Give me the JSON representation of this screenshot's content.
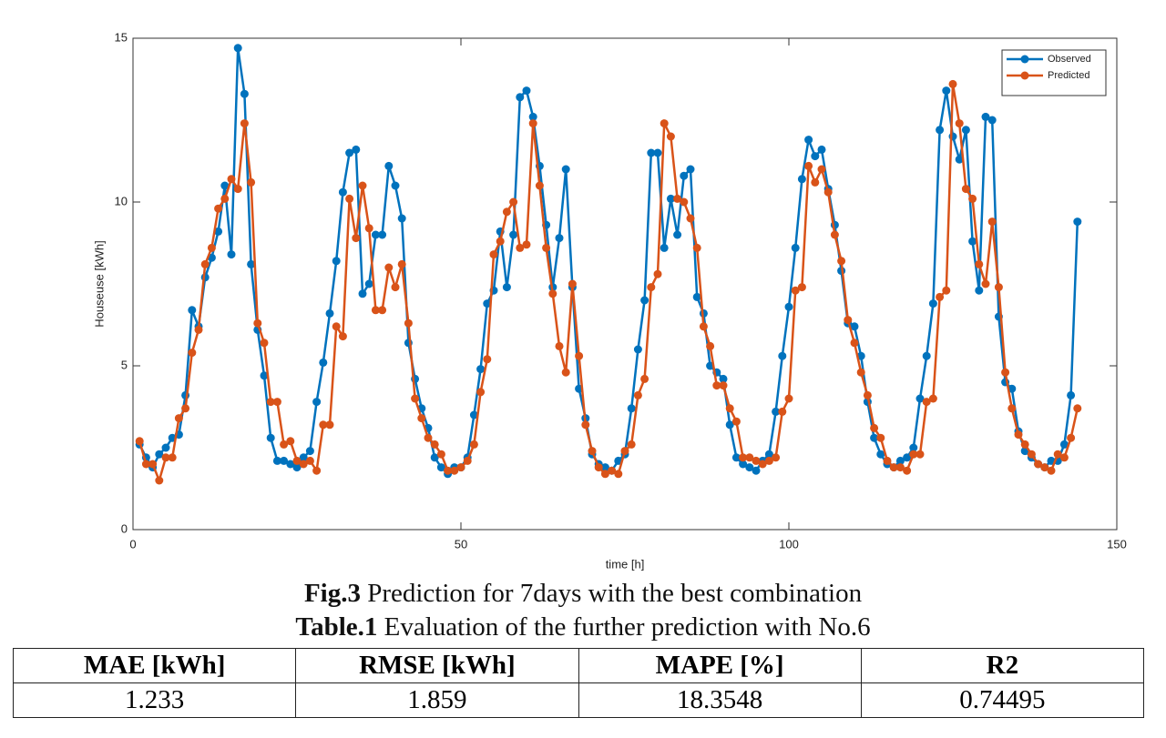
{
  "chart_data": {
    "type": "line",
    "xlabel": "time [h]",
    "ylabel": "Houseuse [kWh]",
    "x": [
      1,
      2,
      3,
      4,
      5,
      6,
      7,
      8,
      9,
      10,
      11,
      12,
      13,
      14,
      15,
      16,
      17,
      18,
      19,
      20,
      21,
      22,
      23,
      24,
      25,
      26,
      27,
      28,
      29,
      30,
      31,
      32,
      33,
      34,
      35,
      36,
      37,
      38,
      39,
      40,
      41,
      42,
      43,
      44,
      45,
      46,
      47,
      48,
      49,
      50,
      51,
      52,
      53,
      54,
      55,
      56,
      57,
      58,
      59,
      60,
      61,
      62,
      63,
      64,
      65,
      66,
      67,
      68,
      69,
      70,
      71,
      72,
      73,
      74,
      75,
      76,
      77,
      78,
      79,
      80,
      81,
      82,
      83,
      84,
      85,
      86,
      87,
      88,
      89,
      90,
      91,
      92,
      93,
      94,
      95,
      96,
      97,
      98,
      99,
      100,
      101,
      102,
      103,
      104,
      105,
      106,
      107,
      108,
      109,
      110,
      111,
      112,
      113,
      114,
      115,
      116,
      117,
      118,
      119,
      120,
      121,
      122,
      123,
      124,
      125,
      126,
      127,
      128,
      129,
      130,
      131,
      132,
      133,
      134,
      135,
      136,
      137,
      138,
      139,
      140,
      141,
      142,
      143,
      144
    ],
    "series": [
      {
        "name": "Observed",
        "color": "#0072bd",
        "values": [
          2.6,
          2.2,
          1.9,
          2.3,
          2.5,
          2.8,
          2.9,
          4.1,
          6.7,
          6.2,
          7.7,
          8.3,
          9.1,
          10.5,
          8.4,
          14.7,
          13.3,
          8.1,
          6.1,
          4.7,
          2.8,
          2.1,
          2.1,
          2.0,
          1.9,
          2.2,
          2.4,
          3.9,
          5.1,
          6.6,
          8.2,
          10.3,
          11.5,
          11.6,
          7.2,
          7.5,
          9.0,
          9.0,
          11.1,
          10.5,
          9.5,
          5.7,
          4.6,
          3.7,
          3.1,
          2.2,
          1.9,
          1.7,
          1.9,
          1.9,
          2.2,
          3.5,
          4.9,
          6.9,
          7.3,
          9.1,
          7.4,
          9.0,
          13.2,
          13.4,
          12.6,
          11.1,
          9.3,
          7.4,
          8.9,
          11.0,
          7.4,
          4.3,
          3.4,
          2.3,
          2.0,
          1.9,
          1.8,
          2.1,
          2.3,
          3.7,
          5.5,
          7.0,
          11.5,
          11.5,
          8.6,
          10.1,
          9.0,
          10.8,
          11.0,
          7.1,
          6.6,
          5.0,
          4.8,
          4.6,
          3.2,
          2.2,
          2.0,
          1.9,
          1.8,
          2.1,
          2.3,
          3.6,
          5.3,
          6.8,
          8.6,
          10.7,
          11.9,
          11.4,
          11.6,
          10.4,
          9.3,
          7.9,
          6.3,
          6.2,
          5.3,
          3.9,
          2.8,
          2.3,
          2.0,
          1.9,
          2.1,
          2.2,
          2.5,
          4.0,
          5.3,
          6.9,
          12.2,
          13.4,
          12.0,
          11.3,
          12.2,
          8.8,
          7.3,
          12.6,
          12.5,
          6.5,
          4.5,
          4.3,
          3.0,
          2.4,
          2.2,
          2.0,
          1.9,
          2.1,
          2.1,
          2.6,
          4.1,
          9.4
        ]
      },
      {
        "name": "Predicted",
        "color": "#d95319",
        "values": [
          2.7,
          2.0,
          2.0,
          1.5,
          2.2,
          2.2,
          3.4,
          3.7,
          5.4,
          6.1,
          8.1,
          8.6,
          9.8,
          10.1,
          10.7,
          10.4,
          12.4,
          10.6,
          6.3,
          5.7,
          3.9,
          3.9,
          2.6,
          2.7,
          2.1,
          2.0,
          2.1,
          1.8,
          3.2,
          3.2,
          6.2,
          5.9,
          10.1,
          8.9,
          10.5,
          9.2,
          6.7,
          6.7,
          8.0,
          7.4,
          8.1,
          6.3,
          4.0,
          3.4,
          2.8,
          2.6,
          2.3,
          1.8,
          1.8,
          1.9,
          2.1,
          2.6,
          4.2,
          5.2,
          8.4,
          8.8,
          9.7,
          10.0,
          8.6,
          8.7,
          12.4,
          10.5,
          8.6,
          7.2,
          5.6,
          4.8,
          7.5,
          5.3,
          3.2,
          2.4,
          1.9,
          1.7,
          1.8,
          1.7,
          2.4,
          2.6,
          4.1,
          4.6,
          7.4,
          7.8,
          12.4,
          12.0,
          10.1,
          10.0,
          9.5,
          8.6,
          6.2,
          5.6,
          4.4,
          4.4,
          3.7,
          3.3,
          2.2,
          2.2,
          2.1,
          2.0,
          2.1,
          2.2,
          3.6,
          4.0,
          7.3,
          7.4,
          11.1,
          10.6,
          11.0,
          10.3,
          9.0,
          8.2,
          6.4,
          5.7,
          4.8,
          4.1,
          3.1,
          2.8,
          2.1,
          1.9,
          1.9,
          1.8,
          2.3,
          2.3,
          3.9,
          4.0,
          7.1,
          7.3,
          13.6,
          12.4,
          10.4,
          10.1,
          8.1,
          7.5,
          9.4,
          7.4,
          4.8,
          3.7,
          2.9,
          2.6,
          2.3,
          2.0,
          1.9,
          1.8,
          2.3,
          2.2,
          2.8,
          3.7
        ]
      }
    ],
    "xlim": [
      0,
      150
    ],
    "ylim": [
      0,
      15
    ],
    "xticks": [
      0,
      50,
      100,
      150
    ],
    "yticks": [
      0,
      5,
      10,
      15
    ],
    "legend": "northeast"
  },
  "figure_caption": {
    "label": "Fig.3",
    "text": " Prediction for 7days with the best combination"
  },
  "table_caption": {
    "label": "Table.1",
    "text": " Evaluation of the further prediction with No.6"
  },
  "table": {
    "header": [
      "MAE [kWh]",
      "RMSE [kWh]",
      "MAPE [%]",
      "R2"
    ],
    "rows": [
      [
        1.233,
        1.859,
        18.3548,
        0.74495
      ]
    ]
  }
}
